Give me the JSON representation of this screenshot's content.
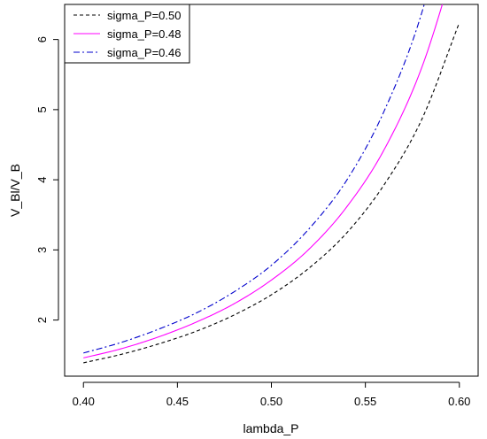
{
  "chart_data": {
    "type": "line",
    "xlabel": "lambda_P",
    "ylabel": "V_Bl/V_B",
    "xlim": [
      0.39,
      0.61
    ],
    "ylim": [
      1.2,
      6.5
    ],
    "xticks": [
      0.4,
      0.45,
      0.5,
      0.55,
      0.6
    ],
    "xtick_labels": [
      "0.40",
      "0.45",
      "0.50",
      "0.55",
      "0.60"
    ],
    "yticks": [
      2,
      3,
      4,
      5,
      6
    ],
    "ytick_labels": [
      "2",
      "3",
      "4",
      "5",
      "6"
    ],
    "grid": false,
    "legend_position": "top-left",
    "x": [
      0.4,
      0.42,
      0.44,
      0.46,
      0.48,
      0.5,
      0.52,
      0.54,
      0.56,
      0.58,
      0.6
    ],
    "series": [
      {
        "name": "sigma_P=0.50",
        "color": "#000000",
        "dash": "dashed",
        "values": [
          1.39,
          1.51,
          1.66,
          1.84,
          2.07,
          2.36,
          2.74,
          3.24,
          3.93,
          4.86,
          6.24
        ]
      },
      {
        "name": "sigma_P=0.48",
        "color": "#ff00ff",
        "dash": "solid",
        "values": [
          1.46,
          1.59,
          1.76,
          1.97,
          2.23,
          2.57,
          3.01,
          3.61,
          4.43,
          5.6,
          7.3
        ]
      },
      {
        "name": "sigma_P=0.46",
        "color": "#0000cc",
        "dash": "dashdot",
        "values": [
          1.53,
          1.68,
          1.87,
          2.1,
          2.4,
          2.78,
          3.3,
          3.99,
          4.98,
          6.38,
          8.5
        ]
      }
    ]
  }
}
